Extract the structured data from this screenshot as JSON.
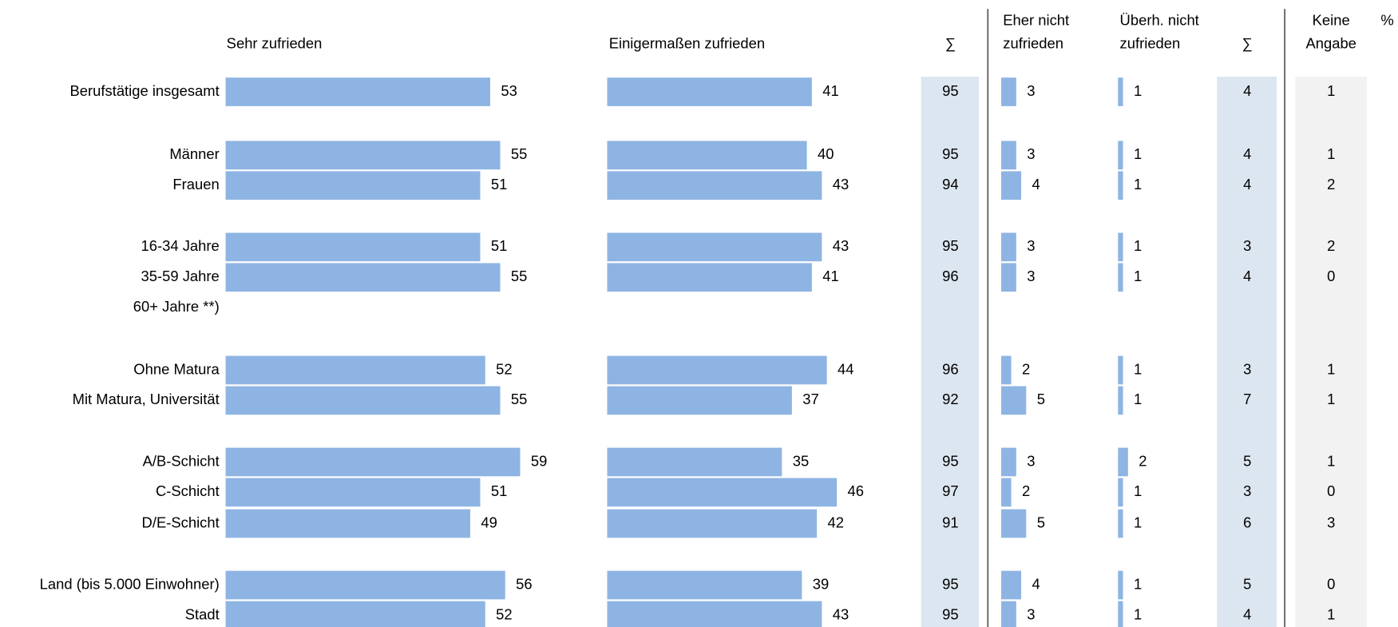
{
  "chart_data": {
    "type": "bar",
    "categories": [
      "Berufstätige insgesamt",
      "Männer",
      "Frauen",
      "16-34 Jahre",
      "35-59 Jahre",
      "60+ Jahre **)",
      "Ohne Matura",
      "Mit Matura, Universität",
      "A/B-Schicht",
      "C-Schicht",
      "D/E-Schicht",
      "Land (bis 5.000 Einwohner)",
      "Stadt"
    ],
    "unit": "%",
    "series": [
      {
        "name": [
          "Sehr zufrieden"
        ],
        "color": "#8eb4e3",
        "values": [
          53,
          55,
          51,
          51,
          55,
          null,
          52,
          55,
          59,
          51,
          49,
          56,
          52
        ]
      },
      {
        "name": [
          "Einigermaßen zufrieden"
        ],
        "color": "#8eb4e3",
        "values": [
          41,
          40,
          43,
          43,
          41,
          null,
          44,
          37,
          35,
          46,
          42,
          39,
          43
        ]
      },
      {
        "name": [
          "∑"
        ],
        "values": [
          95,
          95,
          94,
          95,
          96,
          null,
          96,
          92,
          95,
          97,
          91,
          95,
          95
        ]
      },
      {
        "name": [
          "Eher nicht",
          "zufrieden"
        ],
        "color": "#8eb4e3",
        "values": [
          3,
          3,
          4,
          3,
          3,
          null,
          2,
          5,
          3,
          2,
          5,
          4,
          3
        ]
      },
      {
        "name": [
          "Überh. nicht",
          "zufrieden"
        ],
        "color": "#8eb4e3",
        "values": [
          1,
          1,
          1,
          1,
          1,
          null,
          1,
          1,
          2,
          1,
          1,
          1,
          1
        ]
      },
      {
        "name": [
          "∑"
        ],
        "values": [
          4,
          4,
          4,
          3,
          4,
          null,
          3,
          7,
          5,
          3,
          6,
          5,
          4
        ]
      },
      {
        "name": [
          "Keine",
          "Angabe"
        ],
        "values": [
          1,
          1,
          2,
          2,
          0,
          null,
          1,
          1,
          1,
          0,
          3,
          0,
          1
        ]
      }
    ]
  }
}
